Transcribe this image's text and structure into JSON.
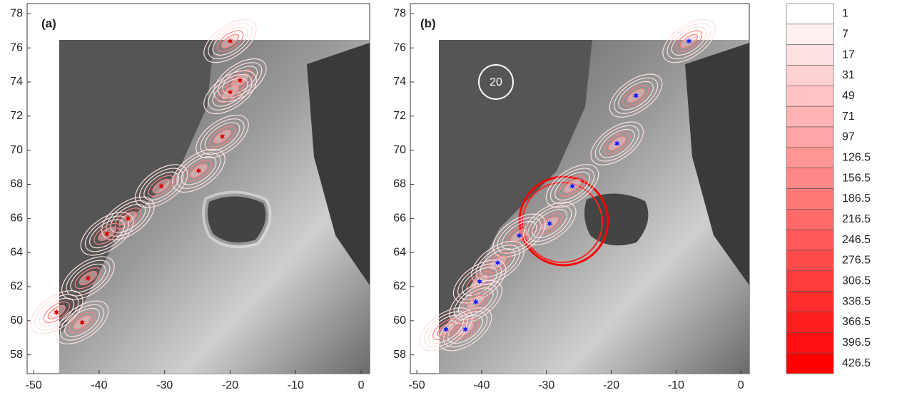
{
  "chart_data": [
    {
      "type": "scatter",
      "title": "(a)",
      "xlim": [
        -51,
        1.3
      ],
      "ylim": [
        56.9,
        78.6
      ],
      "xticks": [
        -50,
        -40,
        -30,
        -20,
        -10,
        0
      ],
      "yticks": [
        58,
        60,
        62,
        64,
        66,
        68,
        70,
        72,
        74,
        76,
        78
      ],
      "series": [
        {
          "color": "#e00000",
          "x": [
            -20,
            -18.5,
            -20,
            -21.2,
            -24.8,
            -30.5,
            -35.6,
            -38.8,
            -41.7,
            -46.5,
            -42.6
          ],
          "y": [
            76.4,
            74.1,
            73.4,
            70.8,
            68.8,
            67.9,
            66,
            65.1,
            62.5,
            60.5,
            59.9
          ]
        }
      ]
    },
    {
      "type": "scatter",
      "title": "(b)",
      "annotation": "20",
      "xlim": [
        -51,
        1.3
      ],
      "ylim": [
        56.9,
        78.6
      ],
      "xticks": [
        -50,
        -40,
        -30,
        -20,
        -10,
        0
      ],
      "yticks": [
        58,
        60,
        62,
        64,
        66,
        68,
        70,
        72,
        74,
        76,
        78
      ],
      "series": [
        {
          "color": "#1a1aff",
          "x": [
            -8,
            -16.2,
            -19.1,
            -26,
            -29.5,
            -34.2,
            -37.5,
            -40.3,
            -40.9,
            -42.5,
            -45.5
          ],
          "y": [
            76.4,
            73.2,
            70.4,
            67.9,
            65.7,
            65,
            63.4,
            62.3,
            61.1,
            59.5,
            59.5
          ]
        }
      ]
    },
    {
      "type": "colorbar",
      "colors": [
        "#ffffff",
        "#ff0000"
      ],
      "levels": [
        1,
        7,
        17,
        31,
        49,
        71,
        97,
        126.5,
        156.5,
        186.5,
        216.5,
        246.5,
        276.5,
        306.5,
        336.5,
        366.5,
        396.5,
        426.5
      ]
    }
  ]
}
